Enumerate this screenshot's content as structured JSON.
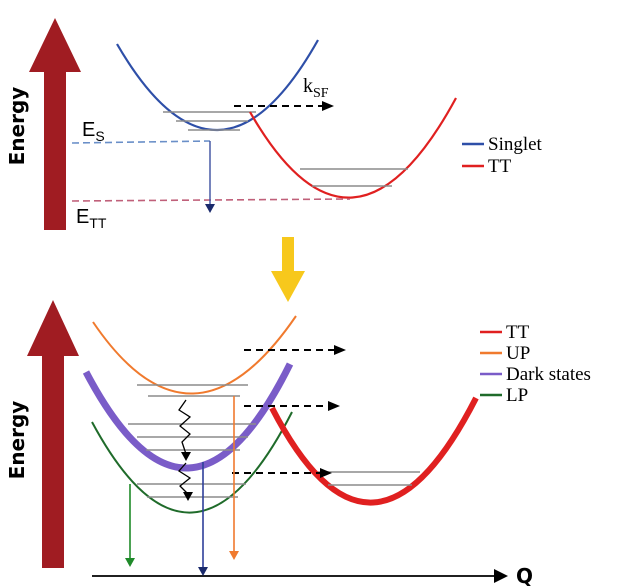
{
  "colors": {
    "energy_arrow": "#a01c22",
    "singlet": "#2e4fa8",
    "tt": "#e02020",
    "up": "#f07a2e",
    "dark_states": "#7a5cc8",
    "lp": "#1f6b2a",
    "yellow_arrow": "#f7c81c",
    "levels": "#8c8c8c"
  },
  "top_panel": {
    "axis_label": "Energy",
    "e_s_label": "E",
    "e_s_sub": "S",
    "e_tt_label": "E",
    "e_tt_sub": "TT",
    "rate_label": "k",
    "rate_sub": "SF",
    "legend": [
      {
        "name": "Singlet",
        "color": "#2e4fa8"
      },
      {
        "name": "TT",
        "color": "#e02020"
      }
    ]
  },
  "bottom_panel": {
    "axis_label": "Energy",
    "x_axis_label": "Q",
    "legend": [
      {
        "name": "TT",
        "color": "#e02020"
      },
      {
        "name": "UP",
        "color": "#f07a2e"
      },
      {
        "name": "Dark states",
        "color": "#7a5cc8"
      },
      {
        "name": "LP",
        "color": "#1f6b2a"
      }
    ]
  }
}
